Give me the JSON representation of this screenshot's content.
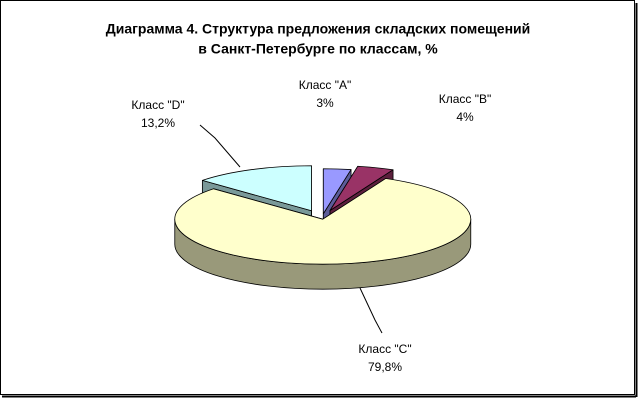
{
  "chart_data": {
    "type": "pie3d",
    "title": [
      "Диаграмма 4. Структура предложения складских помещений",
      "в Санкт-Петербурге по классам, %"
    ],
    "categories": [
      "Класс \"A\"",
      "Класс \"B\"",
      "Класс \"C\"",
      "Класс \"D\""
    ],
    "values": [
      3,
      4,
      79.8,
      13.2
    ],
    "value_labels": [
      "3%",
      "4%",
      "79,8%",
      "13,2%"
    ],
    "colors": [
      "#9999ff",
      "#993366",
      "#ffffcc",
      "#ccffff"
    ]
  }
}
